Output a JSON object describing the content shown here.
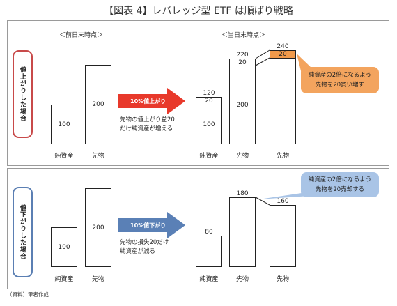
{
  "title": "【図表 4】レバレッジ型 ETF は順ばり戦略",
  "headers": {
    "prev": "＜前日末時点＞",
    "curr": "＜当日末時点＞"
  },
  "scenarios": {
    "up": {
      "label": "値上がりした場合",
      "arrow": "10%値上がり",
      "arrow_color": "#e8392b",
      "desc_line1": "先物の値上がり益20",
      "desc_line2": "だけ純資産が増える",
      "prev": {
        "net_assets": "100",
        "futures": "200"
      },
      "curr": {
        "nav_total": "120",
        "nav_add": "20",
        "nav_base": "100",
        "fut_mid_total": "220",
        "fut_mid_add": "20",
        "fut_mid_base": "200",
        "fut_new_total": "240",
        "fut_new_add": "20"
      },
      "callout_line1": "純資産の2倍になるよう",
      "callout_line2": "先物を20買い増す",
      "callout_color": "#f3a45e"
    },
    "down": {
      "label": "値下がりした場合",
      "arrow": "10%値下がり",
      "arrow_color": "#5a80b6",
      "desc_line1": "先物の損失20だけ",
      "desc_line2": "純資産が減る",
      "prev": {
        "net_assets": "100",
        "futures": "200"
      },
      "curr": {
        "net_assets": "80",
        "futures_mid": "180",
        "futures_new": "160"
      },
      "callout_line1": "純資産の2倍になるよう",
      "callout_line2": "先物を20売却する",
      "callout_color": "#a9c4e6"
    }
  },
  "labels": {
    "net_assets": "純資産",
    "futures": "先物"
  },
  "source": "（資料）筆者作成"
}
